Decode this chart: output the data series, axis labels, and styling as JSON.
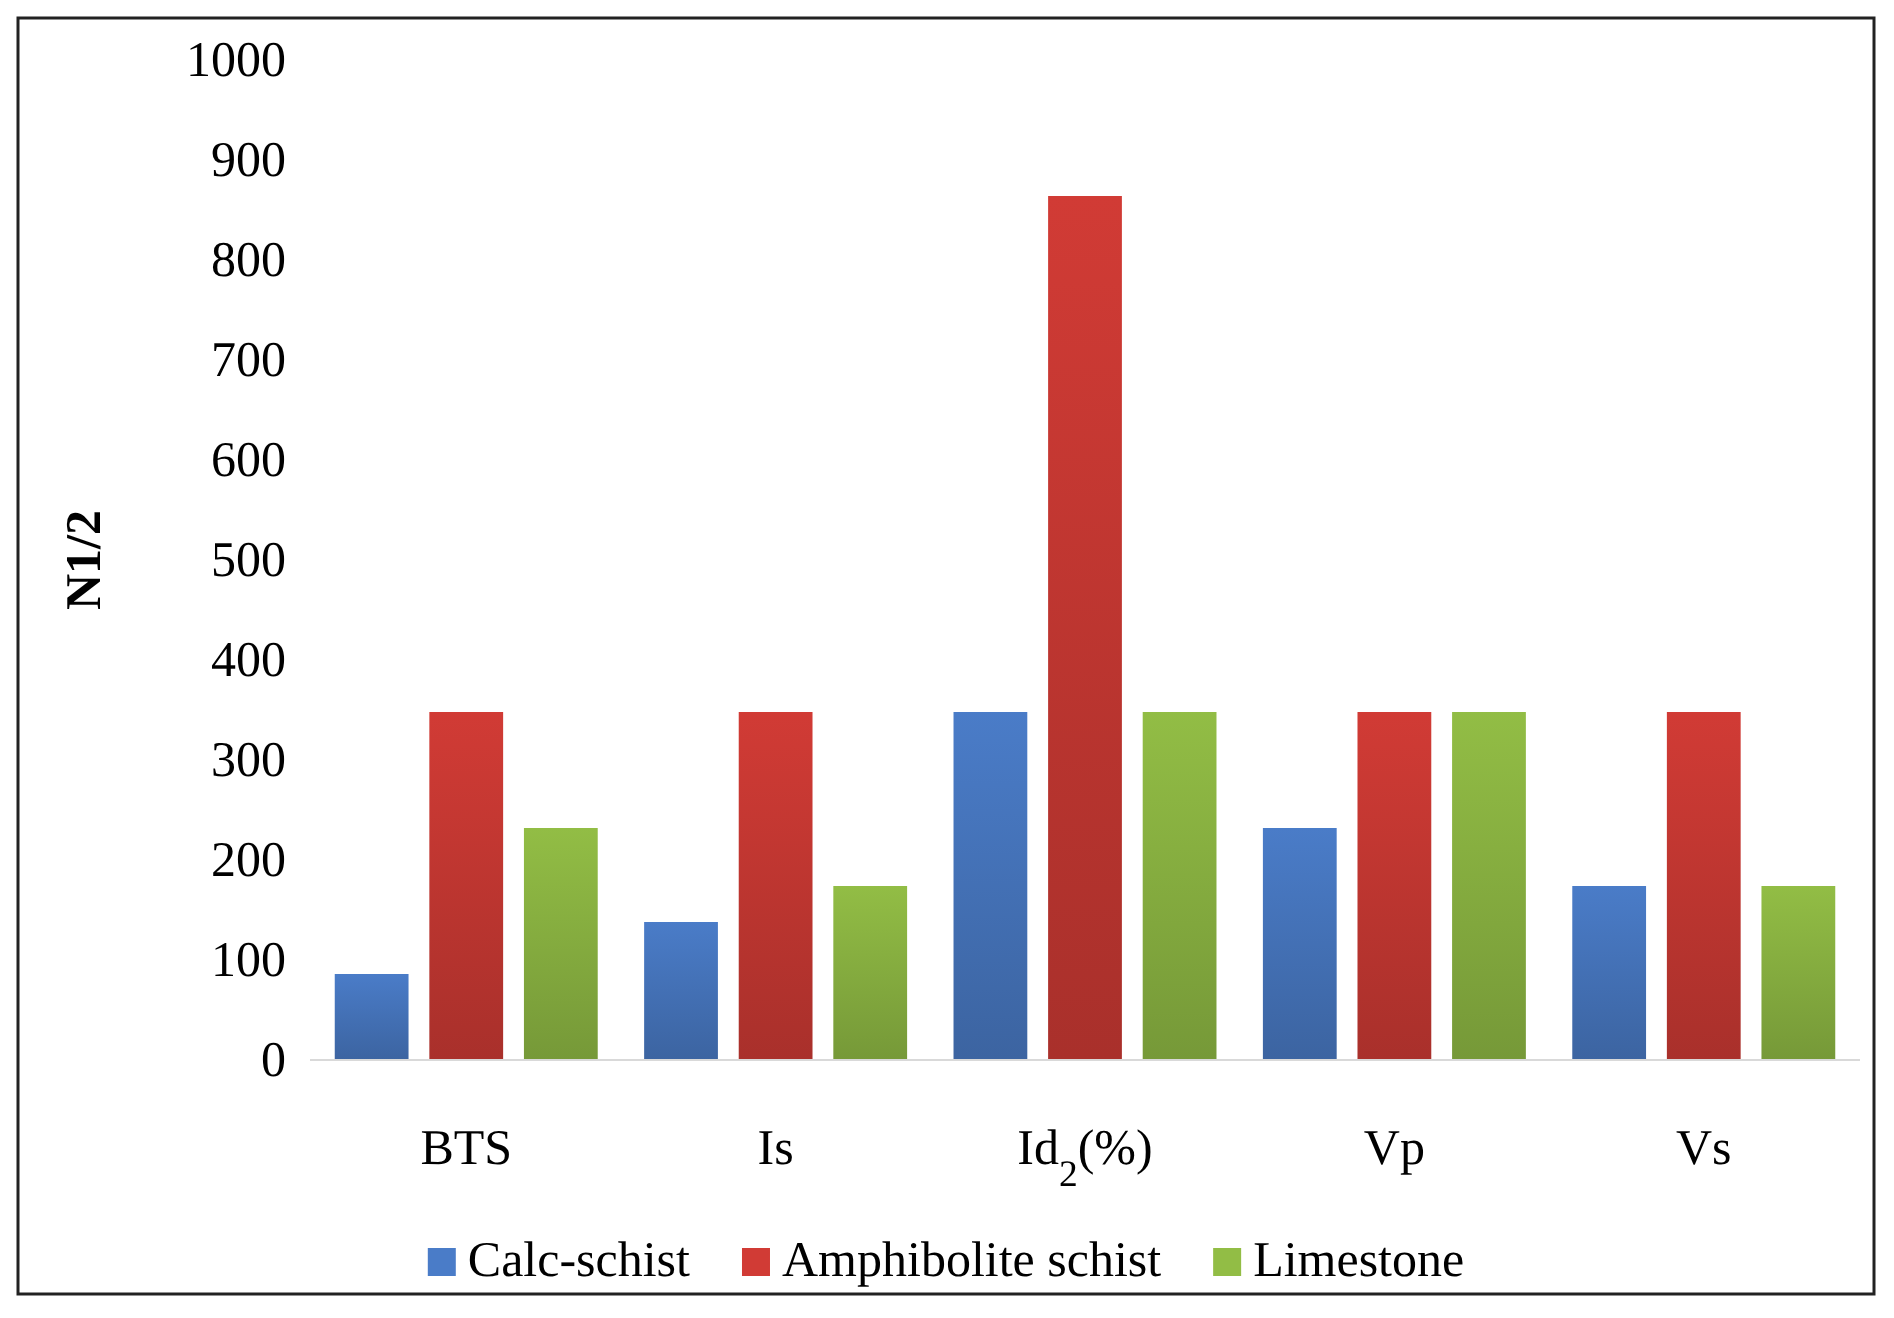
{
  "chart_data": {
    "type": "bar",
    "ylabel": "N1/2",
    "categories": [
      "BTS",
      "Is",
      "Id$_{2}$(%)",
      "Vp",
      "Vs"
    ],
    "series": [
      {
        "name": "Calc-schist",
        "color": "#4a7cc8",
        "values": [
          86,
          138,
          348,
          232,
          174
        ]
      },
      {
        "name": "Amphibolite schist",
        "color": "#d13b35",
        "values": [
          348,
          348,
          864,
          348,
          348
        ]
      },
      {
        "name": "Limestone",
        "color": "#92bd45",
        "values": [
          232,
          174,
          348,
          348,
          174
        ]
      }
    ],
    "ylim": [
      0,
      1000
    ],
    "yticks": [
      0,
      100,
      200,
      300,
      400,
      500,
      600,
      700,
      800,
      900,
      1000
    ],
    "grid": false,
    "legend": "bottom"
  }
}
